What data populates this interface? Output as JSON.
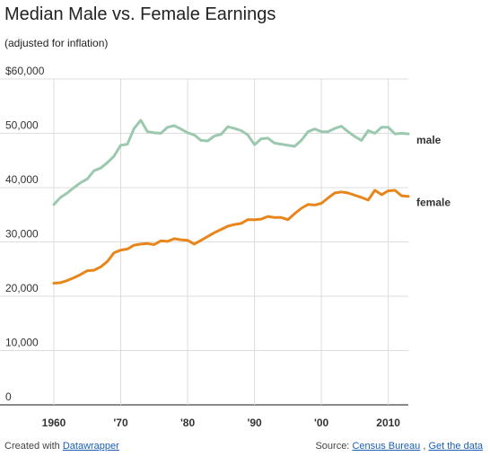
{
  "header": {
    "title": "Median Male vs. Female Earnings",
    "subtitle": "(adjusted for inflation)"
  },
  "footer": {
    "created_prefix": "Created with",
    "tool_link": "Datawrapper",
    "source_prefix": "Source:",
    "source_link": "Census Bureau",
    "separator": ",",
    "data_link": "Get the data"
  },
  "colors": {
    "male": "#9cc8b0",
    "female": "#e8861c",
    "grid": "#dddddd",
    "axis": "#444444"
  },
  "chart_data": {
    "type": "line",
    "title": "Median Male vs. Female Earnings",
    "subtitle": "(adjusted for inflation)",
    "xlim": [
      1960,
      2013
    ],
    "ylim": [
      0,
      60000
    ],
    "y_ticks": [
      {
        "value": 60000,
        "label": "$60,000"
      },
      {
        "value": 50000,
        "label": "50,000"
      },
      {
        "value": 40000,
        "label": "40,000"
      },
      {
        "value": 30000,
        "label": "30,000"
      },
      {
        "value": 20000,
        "label": "20,000"
      },
      {
        "value": 10000,
        "label": "10,000"
      },
      {
        "value": 0,
        "label": "0"
      }
    ],
    "x_ticks": [
      {
        "value": 1960,
        "label": "1960"
      },
      {
        "value": 1970,
        "label": "'70"
      },
      {
        "value": 1980,
        "label": "'80"
      },
      {
        "value": 1990,
        "label": "'90"
      },
      {
        "value": 2000,
        "label": "'00"
      },
      {
        "value": 2010,
        "label": "2010"
      }
    ],
    "grid": true,
    "legend": "inline labels at line ends",
    "x": [
      1960,
      1961,
      1962,
      1963,
      1964,
      1965,
      1966,
      1967,
      1968,
      1969,
      1970,
      1971,
      1972,
      1973,
      1974,
      1975,
      1976,
      1977,
      1978,
      1979,
      1980,
      1981,
      1982,
      1983,
      1984,
      1985,
      1986,
      1987,
      1988,
      1989,
      1990,
      1991,
      1992,
      1993,
      1994,
      1995,
      1996,
      1997,
      1998,
      1999,
      2000,
      2001,
      2002,
      2003,
      2004,
      2005,
      2006,
      2007,
      2008,
      2009,
      2010,
      2011,
      2012,
      2013
    ],
    "series": [
      {
        "name": "male",
        "values": [
          36900,
          38200,
          39000,
          40000,
          40900,
          41600,
          43100,
          43600,
          44600,
          45800,
          47800,
          48000,
          50900,
          52400,
          50300,
          50100,
          50000,
          51100,
          51400,
          50800,
          50100,
          49700,
          48700,
          48600,
          49500,
          49800,
          51200,
          50900,
          50500,
          49700,
          47900,
          49000,
          49100,
          48200,
          48000,
          47800,
          47600,
          48700,
          50300,
          50800,
          50300,
          50300,
          50900,
          51300,
          50300,
          49400,
          48700,
          50500,
          50000,
          51100,
          51100,
          49900,
          50000,
          49900
        ]
      },
      {
        "name": "female",
        "values": [
          22400,
          22500,
          22900,
          23400,
          24000,
          24700,
          24800,
          25400,
          26400,
          28000,
          28500,
          28700,
          29400,
          29600,
          29700,
          29500,
          30200,
          30100,
          30600,
          30400,
          30300,
          29600,
          30300,
          31000,
          31700,
          32300,
          32900,
          33200,
          33400,
          34100,
          34100,
          34200,
          34700,
          34500,
          34500,
          34100,
          35200,
          36200,
          36900,
          36800,
          37100,
          38100,
          39000,
          39200,
          39000,
          38600,
          38200,
          37700,
          39500,
          38700,
          39400,
          39500,
          38500,
          38400
        ]
      }
    ]
  }
}
